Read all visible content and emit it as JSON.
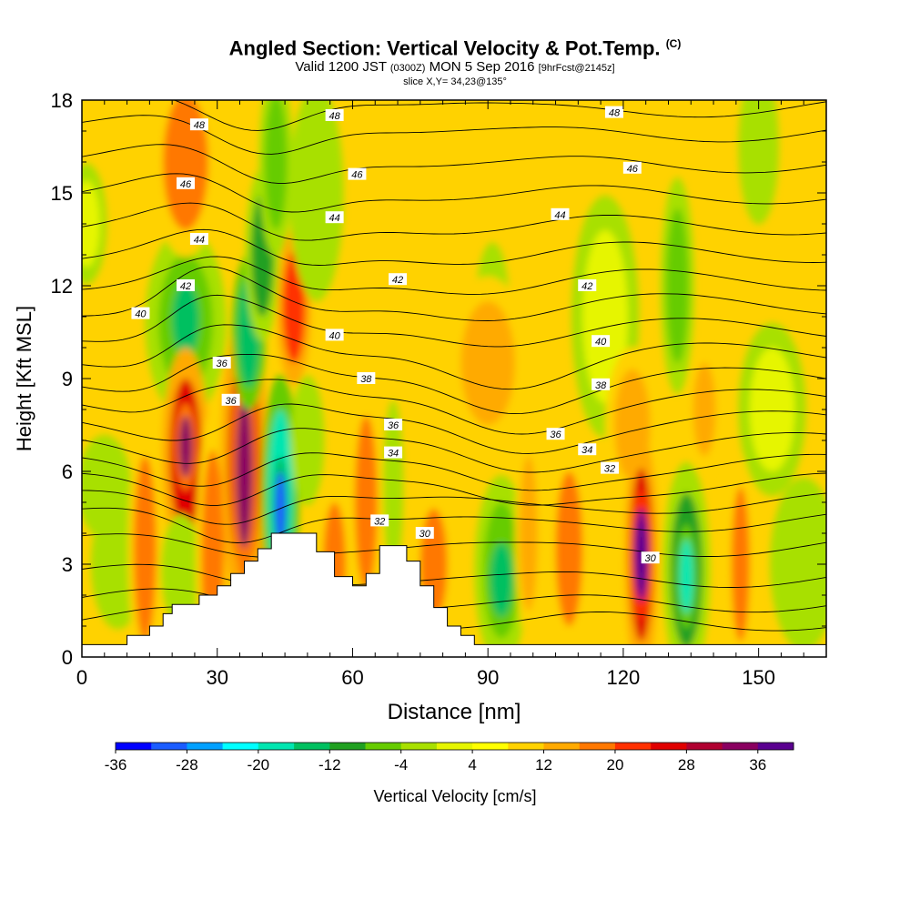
{
  "title": {
    "main": "Angled Section: Vertical Velocity & Pot.Temp.",
    "unit": "(C)",
    "valid_prefix": "Valid 1200 JST",
    "valid_utc": "(0300Z)",
    "valid_date": "MON 5 Sep 2016",
    "forecast": "[9hrFcst@2145z]",
    "slice": "slice X,Y= 34,23@135°"
  },
  "chart_data": {
    "type": "heatmap",
    "xlabel": "Distance [nm]",
    "ylabel": "Height [Kft MSL]",
    "xlim": [
      0,
      165
    ],
    "ylim": [
      0,
      18
    ],
    "x_ticks": [
      0,
      30,
      60,
      90,
      120,
      150
    ],
    "y_ticks": [
      0,
      3,
      6,
      9,
      12,
      15,
      18
    ],
    "background_level": "4",
    "colorbar": {
      "label": "Vertical Velocity [cm/s]",
      "ticks": [
        "-36",
        "-28",
        "-20",
        "-12",
        "-4",
        "4",
        "12",
        "20",
        "28",
        "36"
      ],
      "colors": [
        "#0000ff",
        "#1a5cff",
        "#00a0ff",
        "#00ffff",
        "#00e6b0",
        "#00c060",
        "#20a020",
        "#66cc00",
        "#a8e000",
        "#e6f500",
        "#ffff00",
        "#ffd200",
        "#ffaa00",
        "#ff7800",
        "#ff3000",
        "#e00000",
        "#b00030",
        "#8a0060",
        "#5a0090"
      ]
    },
    "velocity_features": [
      {
        "x": 1,
        "y": 14.0,
        "rx": 3,
        "ry": 1.4,
        "value": -4
      },
      {
        "x": 5,
        "y": 5.5,
        "rx": 4,
        "ry": 1.2,
        "value": -6
      },
      {
        "x": 8,
        "y": 3.0,
        "rx": 4,
        "ry": 1.5,
        "value": -8
      },
      {
        "x": 14,
        "y": 3.5,
        "rx": 2.5,
        "ry": 3.0,
        "value": 12
      },
      {
        "x": 23,
        "y": 10.8,
        "rx": 6,
        "ry": 2.2,
        "value": -12
      },
      {
        "x": 23,
        "y": 10.9,
        "rx": 3,
        "ry": 1.2,
        "value": -20
      },
      {
        "x": 23,
        "y": 16.0,
        "rx": 5,
        "ry": 2.2,
        "value": 12
      },
      {
        "x": 23,
        "y": 6.5,
        "rx": 3.5,
        "ry": 2.5,
        "value": 20
      },
      {
        "x": 23,
        "y": 6.8,
        "rx": 1.5,
        "ry": 1.0,
        "value": 28
      },
      {
        "x": 22,
        "y": 2.8,
        "rx": 3,
        "ry": 1.3,
        "value": -8
      },
      {
        "x": 29,
        "y": 3.2,
        "rx": 2.5,
        "ry": 3.5,
        "value": 12
      },
      {
        "x": 36,
        "y": 6.3,
        "rx": 3.5,
        "ry": 3.5,
        "value": 20
      },
      {
        "x": 36,
        "y": 6.0,
        "rx": 1.8,
        "ry": 2.5,
        "value": 28
      },
      {
        "x": 37,
        "y": 10.5,
        "rx": 2.5,
        "ry": 1.8,
        "value": -20
      },
      {
        "x": 40,
        "y": 13.0,
        "rx": 2.5,
        "ry": 2.0,
        "value": -16
      },
      {
        "x": 43,
        "y": 16.0,
        "rx": 2.5,
        "ry": 2.2,
        "value": -12
      },
      {
        "x": 44,
        "y": 5.2,
        "rx": 2.8,
        "ry": 2.8,
        "value": -24
      },
      {
        "x": 44,
        "y": 4.8,
        "rx": 1.2,
        "ry": 1.2,
        "value": -36
      },
      {
        "x": 47,
        "y": 11.3,
        "rx": 2.5,
        "ry": 1.8,
        "value": 16
      },
      {
        "x": 50,
        "y": 7.0,
        "rx": 2.5,
        "ry": 1.5,
        "value": -8
      },
      {
        "x": 52,
        "y": 15.0,
        "rx": 4,
        "ry": 2.5,
        "value": -6
      },
      {
        "x": 56,
        "y": 3.0,
        "rx": 2.5,
        "ry": 2.0,
        "value": 12
      },
      {
        "x": 63,
        "y": 5.0,
        "rx": 2.5,
        "ry": 2.8,
        "value": 12
      },
      {
        "x": 69,
        "y": 5.5,
        "rx": 1.5,
        "ry": 2.0,
        "value": -8
      },
      {
        "x": 68,
        "y": 12.0,
        "rx": 6,
        "ry": 2.0,
        "value": 6
      },
      {
        "x": 78,
        "y": 3.0,
        "rx": 3,
        "ry": 1.8,
        "value": 12
      },
      {
        "x": 91,
        "y": 11.3,
        "rx": 2.5,
        "ry": 1.5,
        "value": -8
      },
      {
        "x": 90,
        "y": 9.5,
        "rx": 6,
        "ry": 2.0,
        "value": 8
      },
      {
        "x": 93,
        "y": 2.8,
        "rx": 4,
        "ry": 2.2,
        "value": -12
      },
      {
        "x": 93,
        "y": 2.5,
        "rx": 2.5,
        "ry": 1.2,
        "value": -18
      },
      {
        "x": 99,
        "y": 4.0,
        "rx": 2,
        "ry": 2.5,
        "value": 10
      },
      {
        "x": 108,
        "y": 3.5,
        "rx": 3,
        "ry": 2.5,
        "value": 12
      },
      {
        "x": 116,
        "y": 11.0,
        "rx": 5,
        "ry": 2.8,
        "value": -4
      },
      {
        "x": 122,
        "y": 7.5,
        "rx": 4,
        "ry": 1.8,
        "value": 8
      },
      {
        "x": 124,
        "y": 3.3,
        "rx": 2.5,
        "ry": 2.8,
        "value": 20
      },
      {
        "x": 124,
        "y": 3.3,
        "rx": 1.5,
        "ry": 1.5,
        "value": 32
      },
      {
        "x": 132,
        "y": 12.0,
        "rx": 2.5,
        "ry": 2.5,
        "value": -10
      },
      {
        "x": 134,
        "y": 2.8,
        "rx": 3.5,
        "ry": 2.5,
        "value": -14
      },
      {
        "x": 134,
        "y": 2.6,
        "rx": 1.5,
        "ry": 1.2,
        "value": -22
      },
      {
        "x": 138,
        "y": 8.0,
        "rx": 2.5,
        "ry": 1.5,
        "value": 10
      },
      {
        "x": 146,
        "y": 3.0,
        "rx": 2.0,
        "ry": 2.5,
        "value": 12
      },
      {
        "x": 150,
        "y": 16.5,
        "rx": 3,
        "ry": 1.8,
        "value": -6
      },
      {
        "x": 153,
        "y": 8.0,
        "rx": 5,
        "ry": 2.0,
        "value": -4
      },
      {
        "x": 160,
        "y": 3.0,
        "rx": 5,
        "ry": 2.0,
        "value": -8
      }
    ],
    "terrain": [
      [
        0,
        0.4
      ],
      [
        10,
        0.4
      ],
      [
        10,
        0.7
      ],
      [
        15,
        0.7
      ],
      [
        15,
        1.0
      ],
      [
        18,
        1.0
      ],
      [
        18,
        1.4
      ],
      [
        20,
        1.4
      ],
      [
        20,
        1.7
      ],
      [
        26,
        1.7
      ],
      [
        26,
        2.0
      ],
      [
        30,
        2.0
      ],
      [
        30,
        2.3
      ],
      [
        33,
        2.3
      ],
      [
        33,
        2.7
      ],
      [
        36,
        2.7
      ],
      [
        36,
        3.1
      ],
      [
        39,
        3.1
      ],
      [
        39,
        3.5
      ],
      [
        42,
        3.5
      ],
      [
        42,
        4.0
      ],
      [
        52,
        4.0
      ],
      [
        52,
        3.4
      ],
      [
        56,
        3.4
      ],
      [
        56,
        2.6
      ],
      [
        60,
        2.6
      ],
      [
        60,
        2.3
      ],
      [
        63,
        2.3
      ],
      [
        63,
        2.7
      ],
      [
        66,
        2.7
      ],
      [
        66,
        3.6
      ],
      [
        72,
        3.6
      ],
      [
        72,
        3.1
      ],
      [
        75,
        3.1
      ],
      [
        75,
        2.3
      ],
      [
        78,
        2.3
      ],
      [
        78,
        1.6
      ],
      [
        81,
        1.6
      ],
      [
        81,
        1.0
      ],
      [
        84,
        1.0
      ],
      [
        84,
        0.7
      ],
      [
        87,
        0.7
      ],
      [
        87,
        0.4
      ],
      [
        165,
        0.4
      ]
    ],
    "isentrope_labels": [
      {
        "x": 26,
        "y": 17.2,
        "text": "48"
      },
      {
        "x": 56,
        "y": 17.5,
        "text": "48"
      },
      {
        "x": 118,
        "y": 17.6,
        "text": "48"
      },
      {
        "x": 23,
        "y": 15.3,
        "text": "46"
      },
      {
        "x": 61,
        "y": 15.6,
        "text": "46"
      },
      {
        "x": 122,
        "y": 15.8,
        "text": "46"
      },
      {
        "x": 26,
        "y": 13.5,
        "text": "44"
      },
      {
        "x": 56,
        "y": 14.2,
        "text": "44"
      },
      {
        "x": 106,
        "y": 14.3,
        "text": "44"
      },
      {
        "x": 23,
        "y": 12.0,
        "text": "42"
      },
      {
        "x": 70,
        "y": 12.2,
        "text": "42"
      },
      {
        "x": 112,
        "y": 12.0,
        "text": "42"
      },
      {
        "x": 13,
        "y": 11.1,
        "text": "40"
      },
      {
        "x": 56,
        "y": 10.4,
        "text": "40"
      },
      {
        "x": 115,
        "y": 10.2,
        "text": "40"
      },
      {
        "x": 31,
        "y": 9.5,
        "text": "36"
      },
      {
        "x": 63,
        "y": 9.0,
        "text": "38"
      },
      {
        "x": 115,
        "y": 8.8,
        "text": "38"
      },
      {
        "x": 33,
        "y": 8.3,
        "text": "36"
      },
      {
        "x": 69,
        "y": 7.5,
        "text": "36"
      },
      {
        "x": 105,
        "y": 7.2,
        "text": "36"
      },
      {
        "x": 69,
        "y": 6.6,
        "text": "34"
      },
      {
        "x": 112,
        "y": 6.7,
        "text": "34"
      },
      {
        "x": 117,
        "y": 6.1,
        "text": "32"
      },
      {
        "x": 66,
        "y": 4.4,
        "text": "32"
      },
      {
        "x": 76,
        "y": 4.0,
        "text": "30"
      },
      {
        "x": 126,
        "y": 3.2,
        "text": "30"
      }
    ]
  }
}
